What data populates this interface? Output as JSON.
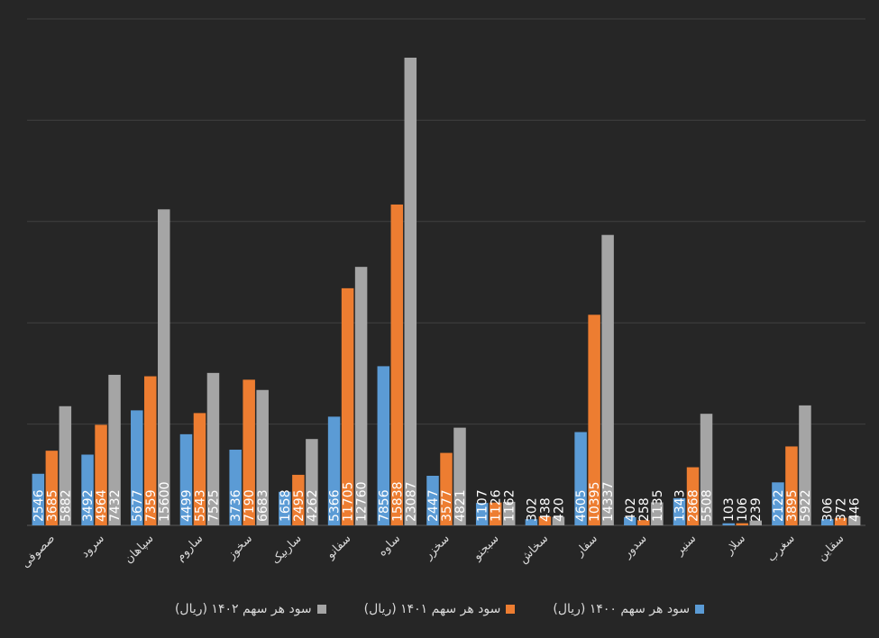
{
  "chart_data": {
    "type": "bar",
    "title": "",
    "xlabel": "",
    "ylabel": "",
    "ylim": [
      0,
      25000
    ],
    "grid": true,
    "legend_position": "bottom",
    "categories": [
      "صصوفی",
      "سرود",
      "سپاهان",
      "ساروم",
      "سخوز",
      "ساربیک",
      "سفانو",
      "ساوه",
      "سخزر",
      "سبجنو",
      "سخاش",
      "سفار",
      "سدور",
      "سنیر",
      "سلار",
      "سغرب",
      "سقاین"
    ],
    "series": [
      {
        "name": "سود هر سهم ۱۴۰۰ (ریال)",
        "color": "#5b9bd5",
        "values": [
          2546,
          3492,
          5677,
          4499,
          3736,
          1658,
          5366,
          7856,
          2447,
          1107,
          302,
          4605,
          402,
          1343,
          103,
          2122,
          306
        ],
        "labels": [
          "2546",
          "3492",
          "5677",
          "4499",
          "3736",
          "1658",
          "5366",
          "7856",
          "2447",
          "1107",
          "302",
          "4605",
          "402",
          "1343",
          "103",
          "2122",
          "306"
        ]
      },
      {
        "name": "سود هر سهم ۱۴۰۱ (ریال)",
        "color": "#ed7d31",
        "values": [
          3685,
          4964,
          7359,
          5543,
          7190,
          2495,
          11705,
          15838,
          3577,
          1126,
          438,
          10395,
          258,
          2868,
          106,
          3895,
          372
        ],
        "labels": [
          "3685",
          "4964",
          "7359",
          "5543",
          "7190",
          "2495",
          "11705",
          "15838",
          "3577",
          "1126",
          "438",
          "10395",
          "258",
          "2868",
          "106",
          "3895",
          "372"
        ]
      },
      {
        "name": "سود هر سهم ۱۴۰۲ (ریال)",
        "color": "#a5a5a5",
        "values": [
          5882,
          7432,
          15600,
          7525,
          6683,
          4262,
          12760,
          23087,
          4821,
          1162,
          420,
          14337,
          1135,
          5508,
          239,
          5922,
          446
        ],
        "labels": [
          "5882",
          "7432",
          "15600",
          "7525",
          "6683",
          "4262",
          "12760",
          "23087",
          "4821",
          "1162",
          "420",
          "14337",
          "1135",
          "5508",
          "239",
          "5922",
          "446"
        ]
      }
    ]
  }
}
